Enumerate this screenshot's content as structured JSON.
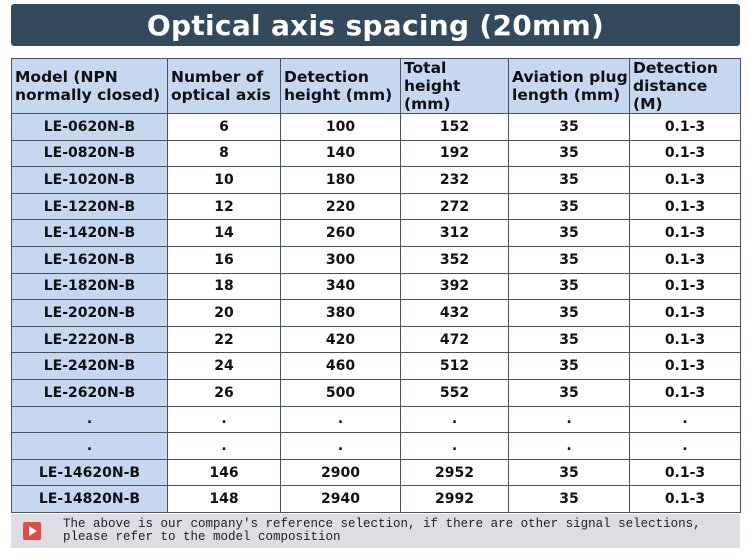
{
  "title": "Optical axis spacing (20mm)",
  "table": {
    "headers": [
      "Model (NPN\nnormally closed)",
      "Number of\noptical axis",
      "Detection\nheight (mm)",
      "Total height\n(mm)",
      "Aviation plug\nlength (mm)",
      "Detection\ndistance (M)"
    ],
    "rows": [
      [
        "LE-0620N-B",
        "6",
        "100",
        "152",
        "35",
        "0.1-3"
      ],
      [
        "LE-0820N-B",
        "8",
        "140",
        "192",
        "35",
        "0.1-3"
      ],
      [
        "LE-1020N-B",
        "10",
        "180",
        "232",
        "35",
        "0.1-3"
      ],
      [
        "LE-1220N-B",
        "12",
        "220",
        "272",
        "35",
        "0.1-3"
      ],
      [
        "LE-1420N-B",
        "14",
        "260",
        "312",
        "35",
        "0.1-3"
      ],
      [
        "LE-1620N-B",
        "16",
        "300",
        "352",
        "35",
        "0.1-3"
      ],
      [
        "LE-1820N-B",
        "18",
        "340",
        "392",
        "35",
        "0.1-3"
      ],
      [
        "LE-2020N-B",
        "20",
        "380",
        "432",
        "35",
        "0.1-3"
      ],
      [
        "LE-2220N-B",
        "22",
        "420",
        "472",
        "35",
        "0.1-3"
      ],
      [
        "LE-2420N-B",
        "24",
        "460",
        "512",
        "35",
        "0.1-3"
      ],
      [
        "LE-2620N-B",
        "26",
        "500",
        "552",
        "35",
        "0.1-3"
      ],
      [
        ".",
        ".",
        ".",
        ".",
        ".",
        "."
      ],
      [
        ".",
        ".",
        ".",
        ".",
        ".",
        "."
      ],
      [
        "LE-14620N-B",
        "146",
        "2900",
        "2952",
        "35",
        "0.1-3"
      ],
      [
        "LE-14820N-B",
        "148",
        "2940",
        "2992",
        "35",
        "0.1-3"
      ]
    ]
  },
  "note": {
    "icon": "play-icon",
    "line1": "The above is our company's reference selection, if there are other signal selections,",
    "line2": "please refer to the model composition"
  },
  "colors": {
    "banner": "#334a5c",
    "header_fill": "#c6d8f0",
    "model_fill": "#c6d8f0",
    "note_fill": "#dcdee4",
    "icon_red": "#e04a4a"
  }
}
